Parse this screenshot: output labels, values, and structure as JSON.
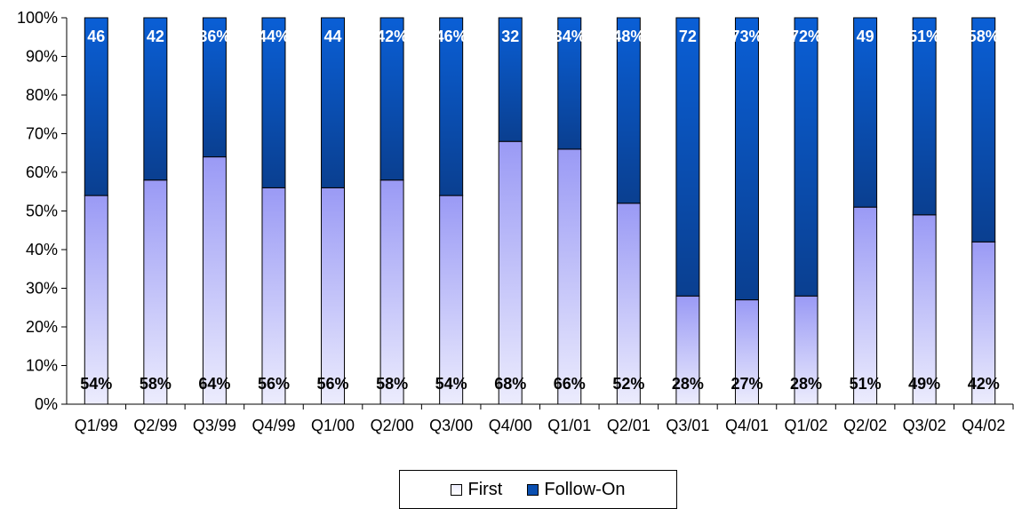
{
  "chart_data": {
    "type": "bar",
    "stacked": true,
    "percent_stacked": true,
    "categories": [
      "Q1/99",
      "Q2/99",
      "Q3/99",
      "Q4/99",
      "Q1/00",
      "Q2/00",
      "Q3/00",
      "Q4/00",
      "Q1/01",
      "Q2/01",
      "Q3/01",
      "Q4/01",
      "Q1/02",
      "Q2/02",
      "Q3/02",
      "Q4/02"
    ],
    "series": [
      {
        "name": "First",
        "values": [
          54,
          58,
          64,
          56,
          56,
          58,
          54,
          68,
          66,
          52,
          28,
          27,
          28,
          51,
          49,
          42
        ],
        "labels": [
          "54%",
          "58%",
          "64%",
          "56%",
          "56%",
          "58%",
          "54%",
          "68%",
          "66%",
          "52%",
          "28%",
          "27%",
          "28%",
          "51%",
          "49%",
          "42%"
        ]
      },
      {
        "name": "Follow-On",
        "values": [
          46,
          42,
          36,
          44,
          44,
          42,
          46,
          32,
          34,
          48,
          72,
          73,
          72,
          49,
          51,
          58
        ],
        "labels": [
          "46",
          "42",
          "36%",
          "44%",
          "44",
          "42%",
          "46%",
          "32",
          "34%",
          "48%",
          "72",
          "73%",
          "72%",
          "49",
          "51%",
          "58%"
        ]
      }
    ],
    "yticks": [
      "0%",
      "10%",
      "20%",
      "30%",
      "40%",
      "50%",
      "60%",
      "70%",
      "80%",
      "90%",
      "100%"
    ],
    "ylim": [
      0,
      100
    ],
    "grid": false,
    "legend": "bottom",
    "colors": {
      "first_top": "#9a9af5",
      "first_bottom": "#ececfd",
      "followon_top": "#0a5fd6",
      "followon_bottom": "#0a3f90",
      "axis": "#000000"
    }
  }
}
